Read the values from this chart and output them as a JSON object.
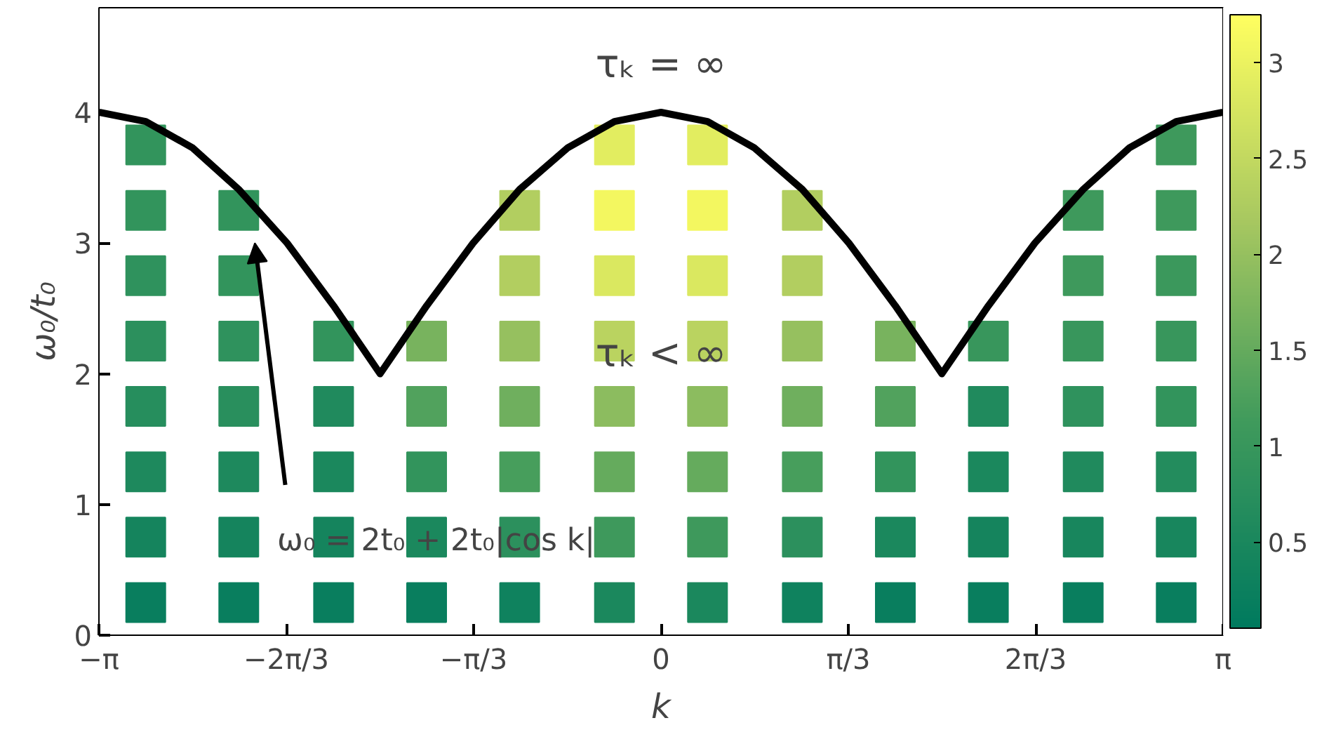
{
  "chart_data": {
    "type": "line",
    "xlabel": "k",
    "ylabel": "ω₀/t₀",
    "clim": [
      0.05,
      3.25
    ],
    "cticks": [
      0.5,
      1.0,
      1.5,
      2.0,
      2.5,
      3.0
    ],
    "series": [
      {
        "type": "scatter",
        "marker": "square",
        "x": [
          -2.88,
          -0.26,
          0.26,
          2.88,
          -2.88,
          -2.36,
          -0.79,
          -0.26,
          0.26,
          0.79,
          2.36,
          2.88,
          -2.88,
          -2.36,
          -0.79,
          -0.26,
          0.26,
          0.79,
          2.36,
          2.88,
          -2.88,
          -2.36,
          -1.83,
          -1.31,
          -0.79,
          -0.26,
          0.26,
          0.79,
          1.31,
          1.83,
          2.36,
          2.88,
          -2.88,
          -2.36,
          -1.83,
          -1.31,
          -0.79,
          -0.26,
          0.26,
          0.79,
          1.31,
          1.83,
          2.36,
          2.88,
          -2.88,
          -2.36,
          -1.83,
          -1.31,
          -0.79,
          -0.26,
          0.26,
          0.79,
          1.31,
          1.83,
          2.36,
          2.88,
          -2.88,
          -2.36,
          -1.83,
          -1.31,
          -0.79,
          -0.26,
          0.26,
          0.79,
          1.31,
          1.83,
          2.36,
          2.88,
          -2.88,
          -2.36,
          -1.83,
          -1.31,
          -0.79,
          -0.26,
          0.26,
          0.79,
          1.31,
          1.83,
          2.36,
          2.88
        ],
        "values": [
          3.75,
          3.75,
          3.75,
          3.75,
          3.25,
          3.25,
          3.25,
          3.25,
          3.25,
          3.25,
          3.25,
          3.25,
          2.75,
          2.75,
          2.75,
          2.75,
          2.75,
          2.75,
          2.75,
          2.75,
          2.25,
          2.25,
          2.25,
          2.25,
          2.25,
          2.25,
          2.25,
          2.25,
          2.25,
          2.25,
          2.25,
          2.25,
          1.75,
          1.75,
          1.75,
          1.75,
          1.75,
          1.75,
          1.75,
          1.75,
          1.75,
          1.75,
          1.75,
          1.75,
          1.25,
          1.25,
          1.25,
          1.25,
          1.25,
          1.25,
          1.25,
          1.25,
          1.25,
          1.25,
          1.25,
          1.25,
          0.75,
          0.75,
          0.75,
          0.75,
          0.75,
          0.75,
          0.75,
          0.75,
          0.75,
          0.75,
          0.75,
          0.75,
          0.25,
          0.25,
          0.25,
          0.25,
          0.25,
          0.25,
          0.25,
          0.25,
          0.25,
          0.25,
          0.25,
          0.25
        ],
        "colors": [
          "#32945c",
          "#e2ed60",
          "#e2ed60",
          "#3e995c",
          "#32945c",
          "#32945c",
          "#b2ce60",
          "#f3f760",
          "#f3f760",
          "#b2ce60",
          "#3e995c",
          "#3e995c",
          "#2f925d",
          "#32945c",
          "#b2ce60",
          "#dae860",
          "#dae860",
          "#b2ce60",
          "#3e995c",
          "#3b985c",
          "#2c905d",
          "#2f925d",
          "#32945c",
          "#78b35e",
          "#96c05f",
          "#bad360",
          "#bad360",
          "#96c05f",
          "#78b35e",
          "#38965c",
          "#38965c",
          "#38965c",
          "#268e5d",
          "#298f5d",
          "#208a5d",
          "#51a25d",
          "#6faf5e",
          "#8cbc5f",
          "#8cbc5f",
          "#6faf5e",
          "#51a25d",
          "#208a5d",
          "#2f925d",
          "#32945c",
          "#1e895d",
          "#1e895d",
          "#1b885d",
          "#32945c",
          "#479e5c",
          "#65ab5d",
          "#65ab5d",
          "#479e5c",
          "#32945c",
          "#1b885d",
          "#208a5d",
          "#238c5d",
          "#15845d",
          "#15845d",
          "#15845d",
          "#1b885d",
          "#2c905d",
          "#3e995c",
          "#3e995c",
          "#2c905d",
          "#1b885d",
          "#15845d",
          "#18865d",
          "#18865d",
          "#097e5e",
          "#097e5e",
          "#097e5e",
          "#097e5e",
          "#0f825e",
          "#1b885d",
          "#1b885d",
          "#0f825e",
          "#097e5e",
          "#097e5e",
          "#097e5e",
          "#097e5e"
        ],
        "cvalues": [
          0.9,
          2.9,
          2.9,
          1.1,
          0.9,
          0.9,
          2.3,
          3.1,
          3.1,
          2.3,
          1.1,
          1.1,
          0.85,
          0.9,
          2.3,
          2.8,
          2.8,
          2.3,
          1.1,
          1.05,
          0.8,
          0.85,
          0.9,
          1.7,
          2.0,
          2.4,
          2.4,
          2.0,
          1.7,
          1.0,
          1.0,
          1.0,
          0.7,
          0.75,
          0.6,
          1.3,
          1.6,
          1.9,
          1.9,
          1.6,
          1.3,
          0.6,
          0.85,
          0.9,
          0.55,
          0.55,
          0.5,
          0.9,
          1.2,
          1.5,
          1.5,
          1.2,
          0.9,
          0.5,
          0.6,
          0.65,
          0.4,
          0.4,
          0.4,
          0.5,
          0.8,
          1.1,
          1.1,
          0.8,
          0.5,
          0.4,
          0.45,
          0.45,
          0.2,
          0.2,
          0.2,
          0.2,
          0.3,
          0.5,
          0.5,
          0.3,
          0.2,
          0.2,
          0.2,
          0.2
        ]
      },
      {
        "color": "#000000",
        "x": [
          -3.14,
          -2.88,
          -2.62,
          -2.36,
          -2.09,
          -1.83,
          -1.57,
          -1.31,
          -1.05,
          -0.79,
          -0.52,
          -0.26,
          0,
          0.26,
          0.52,
          0.79,
          1.05,
          1.31,
          1.57,
          1.83,
          2.09,
          2.36,
          2.62,
          2.88,
          3.14
        ],
        "values": [
          4,
          3.93,
          3.73,
          3.41,
          3.0,
          2.52,
          2,
          2.52,
          3.0,
          3.41,
          3.73,
          3.93,
          4,
          3.93,
          3.73,
          3.41,
          3.0,
          2.52,
          2,
          2.52,
          3.0,
          3.41,
          3.73,
          3.93,
          4
        ]
      }
    ],
    "xlim": [
      -3.1416,
      3.1416
    ],
    "xticks": [
      {
        "value": -3.1416,
        "label": "−π"
      },
      {
        "value": -2.0944,
        "label": "−2π/3"
      },
      {
        "value": -1.0472,
        "label": "−π/3"
      },
      {
        "value": 0,
        "label": "0"
      },
      {
        "value": 1.0472,
        "label": "π/3"
      },
      {
        "value": 2.0944,
        "label": "2π/3"
      },
      {
        "value": 3.1416,
        "label": "π"
      }
    ],
    "ylim": [
      0,
      4.8
    ],
    "yticks": [
      0,
      1,
      2,
      3,
      4
    ],
    "grid": false,
    "annotations": [
      "τₖ = ∞",
      "τₖ < ∞",
      "ω₀ = 2t₀ + 2t₀|cos k|"
    ]
  }
}
